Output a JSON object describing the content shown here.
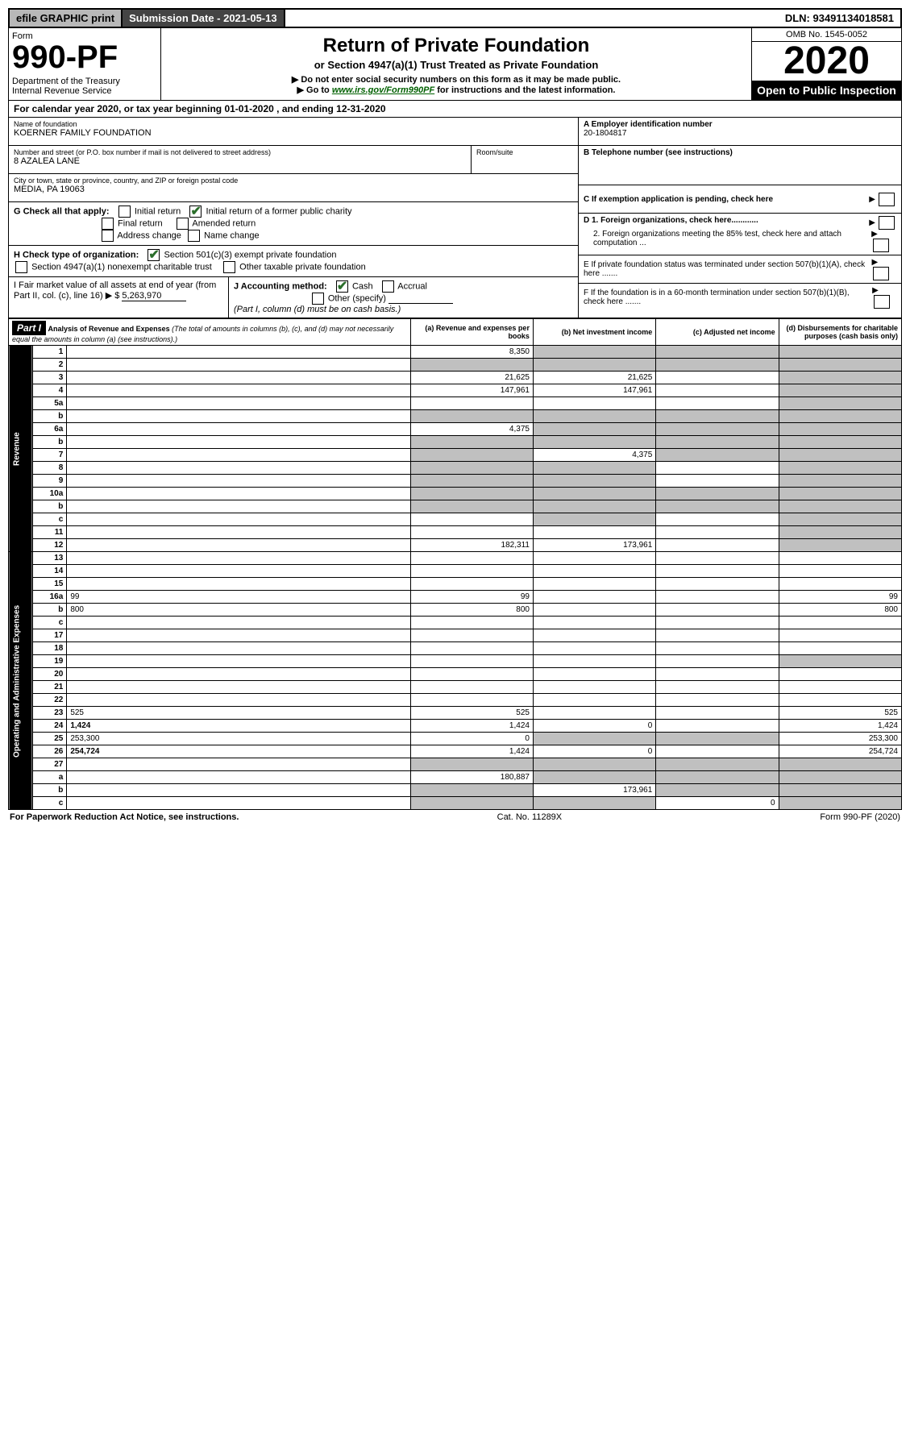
{
  "topbar": {
    "efile": "efile GRAPHIC print",
    "submission": "Submission Date - 2021-05-13",
    "dln": "DLN: 93491134018581"
  },
  "header": {
    "form_word": "Form",
    "form_number": "990-PF",
    "dept": "Department of the Treasury\nInternal Revenue Service",
    "title": "Return of Private Foundation",
    "subtitle1": "or Section 4947(a)(1) Trust Treated as Private Foundation",
    "subtitle2a": "▶ Do not enter social security numbers on this form as it may be made public.",
    "subtitle2b": "▶ Go to ",
    "link": "www.irs.gov/Form990PF",
    "subtitle2c": " for instructions and the latest information.",
    "omb": "OMB No. 1545-0052",
    "year": "2020",
    "open": "Open to Public Inspection"
  },
  "calyear": "For calendar year 2020, or tax year beginning 01-01-2020            , and ending 12-31-2020",
  "info": {
    "name_label": "Name of foundation",
    "name": "KOERNER FAMILY FOUNDATION",
    "addr_label": "Number and street (or P.O. box number if mail is not delivered to street address)",
    "addr": "8 AZALEA LANE",
    "room_label": "Room/suite",
    "city_label": "City or town, state or province, country, and ZIP or foreign postal code",
    "city": "MEDIA, PA  19063",
    "a_label": "A Employer identification number",
    "a_val": "20-1804817",
    "b_label": "B Telephone number (see instructions)",
    "c_label": "C If exemption application is pending, check here",
    "d1_label": "D 1. Foreign organizations, check here............",
    "d2_label": "2. Foreign organizations meeting the 85% test, check here and attach computation ...",
    "e_label": "E  If private foundation status was terminated under section 507(b)(1)(A), check here .......",
    "f_label": "F  If the foundation is in a 60-month termination under section 507(b)(1)(B), check here .......",
    "g_label": "G Check all that apply:",
    "g_opts": [
      "Initial return",
      "Initial return of a former public charity",
      "Final return",
      "Amended return",
      "Address change",
      "Name change"
    ],
    "h_label": "H Check type of organization:",
    "h_opts": [
      "Section 501(c)(3) exempt private foundation",
      "Section 4947(a)(1) nonexempt charitable trust",
      "Other taxable private foundation"
    ],
    "i_label": "I Fair market value of all assets at end of year (from Part II, col. (c), line 16) ▶ $",
    "i_val": "5,263,970",
    "j_label": "J Accounting method:",
    "j_opts": [
      "Cash",
      "Accrual",
      "Other (specify)"
    ],
    "j_note": "(Part I, column (d) must be on cash basis.)"
  },
  "part1": {
    "label": "Part I",
    "title": "Analysis of Revenue and Expenses",
    "note": "(The total of amounts in columns (b), (c), and (d) may not necessarily equal the amounts in column (a) (see instructions).)",
    "cols": [
      "(a)  Revenue and expenses per books",
      "(b)  Net investment income",
      "(c)  Adjusted net income",
      "(d)  Disbursements for charitable purposes (cash basis only)"
    ]
  },
  "side_labels": {
    "rev": "Revenue",
    "exp": "Operating and Administrative Expenses"
  },
  "rows": [
    {
      "n": "1",
      "d": "",
      "a": "8,350",
      "b": "",
      "c": "",
      "grey": [
        "b",
        "c",
        "d"
      ]
    },
    {
      "n": "2",
      "d": "",
      "a": "",
      "b": "",
      "c": "",
      "grey": [
        "a",
        "b",
        "c",
        "d"
      ]
    },
    {
      "n": "3",
      "d": "",
      "a": "21,625",
      "b": "21,625",
      "c": "",
      "grey": [
        "d"
      ]
    },
    {
      "n": "4",
      "d": "",
      "a": "147,961",
      "b": "147,961",
      "c": "",
      "grey": [
        "d"
      ]
    },
    {
      "n": "5a",
      "d": "",
      "a": "",
      "b": "",
      "c": "",
      "grey": [
        "d"
      ]
    },
    {
      "n": "b",
      "d": "",
      "a": "",
      "b": "",
      "c": "",
      "grey": [
        "a",
        "b",
        "c",
        "d"
      ]
    },
    {
      "n": "6a",
      "d": "",
      "a": "4,375",
      "b": "",
      "c": "",
      "grey": [
        "b",
        "c",
        "d"
      ]
    },
    {
      "n": "b",
      "d": "",
      "a": "",
      "b": "",
      "c": "",
      "grey": [
        "a",
        "b",
        "c",
        "d"
      ]
    },
    {
      "n": "7",
      "d": "",
      "a": "",
      "b": "4,375",
      "c": "",
      "grey": [
        "a",
        "c",
        "d"
      ]
    },
    {
      "n": "8",
      "d": "",
      "a": "",
      "b": "",
      "c": "",
      "grey": [
        "a",
        "b",
        "d"
      ]
    },
    {
      "n": "9",
      "d": "",
      "a": "",
      "b": "",
      "c": "",
      "grey": [
        "a",
        "b",
        "d"
      ]
    },
    {
      "n": "10a",
      "d": "",
      "a": "",
      "b": "",
      "c": "",
      "grey": [
        "a",
        "b",
        "c",
        "d"
      ]
    },
    {
      "n": "b",
      "d": "",
      "a": "",
      "b": "",
      "c": "",
      "grey": [
        "a",
        "b",
        "c",
        "d"
      ]
    },
    {
      "n": "c",
      "d": "",
      "a": "",
      "b": "",
      "c": "",
      "grey": [
        "b",
        "d"
      ]
    },
    {
      "n": "11",
      "d": "",
      "a": "",
      "b": "",
      "c": "",
      "grey": [
        "d"
      ]
    },
    {
      "n": "12",
      "d": "",
      "a": "182,311",
      "b": "173,961",
      "c": "",
      "bold": true,
      "grey": [
        "d"
      ]
    },
    {
      "n": "13",
      "d": "",
      "a": "",
      "b": "",
      "c": ""
    },
    {
      "n": "14",
      "d": "",
      "a": "",
      "b": "",
      "c": ""
    },
    {
      "n": "15",
      "d": "",
      "a": "",
      "b": "",
      "c": ""
    },
    {
      "n": "16a",
      "d": "99",
      "a": "99",
      "b": "",
      "c": ""
    },
    {
      "n": "b",
      "d": "800",
      "a": "800",
      "b": "",
      "c": ""
    },
    {
      "n": "c",
      "d": "",
      "a": "",
      "b": "",
      "c": ""
    },
    {
      "n": "17",
      "d": "",
      "a": "",
      "b": "",
      "c": ""
    },
    {
      "n": "18",
      "d": "",
      "a": "",
      "b": "",
      "c": ""
    },
    {
      "n": "19",
      "d": "",
      "a": "",
      "b": "",
      "c": "",
      "grey": [
        "d"
      ]
    },
    {
      "n": "20",
      "d": "",
      "a": "",
      "b": "",
      "c": ""
    },
    {
      "n": "21",
      "d": "",
      "a": "",
      "b": "",
      "c": ""
    },
    {
      "n": "22",
      "d": "",
      "a": "",
      "b": "",
      "c": ""
    },
    {
      "n": "23",
      "d": "525",
      "a": "525",
      "b": "",
      "c": ""
    },
    {
      "n": "24",
      "d": "1,424",
      "a": "1,424",
      "b": "0",
      "c": "",
      "bold": true
    },
    {
      "n": "25",
      "d": "253,300",
      "a": "0",
      "b": "",
      "c": "",
      "grey": [
        "b",
        "c"
      ]
    },
    {
      "n": "26",
      "d": "254,724",
      "a": "1,424",
      "b": "0",
      "c": "",
      "bold": true
    },
    {
      "n": "27",
      "d": "",
      "a": "",
      "b": "",
      "c": "",
      "grey": [
        "a",
        "b",
        "c",
        "d"
      ]
    },
    {
      "n": "a",
      "d": "",
      "a": "180,887",
      "b": "",
      "c": "",
      "bold": true,
      "grey": [
        "b",
        "c",
        "d"
      ]
    },
    {
      "n": "b",
      "d": "",
      "a": "",
      "b": "173,961",
      "c": "",
      "bold": true,
      "grey": [
        "a",
        "c",
        "d"
      ]
    },
    {
      "n": "c",
      "d": "",
      "a": "",
      "b": "",
      "c": "0",
      "bold": true,
      "grey": [
        "a",
        "b",
        "d"
      ]
    }
  ],
  "footer": {
    "left": "For Paperwork Reduction Act Notice, see instructions.",
    "mid": "Cat. No. 11289X",
    "right": "Form 990-PF (2020)"
  }
}
